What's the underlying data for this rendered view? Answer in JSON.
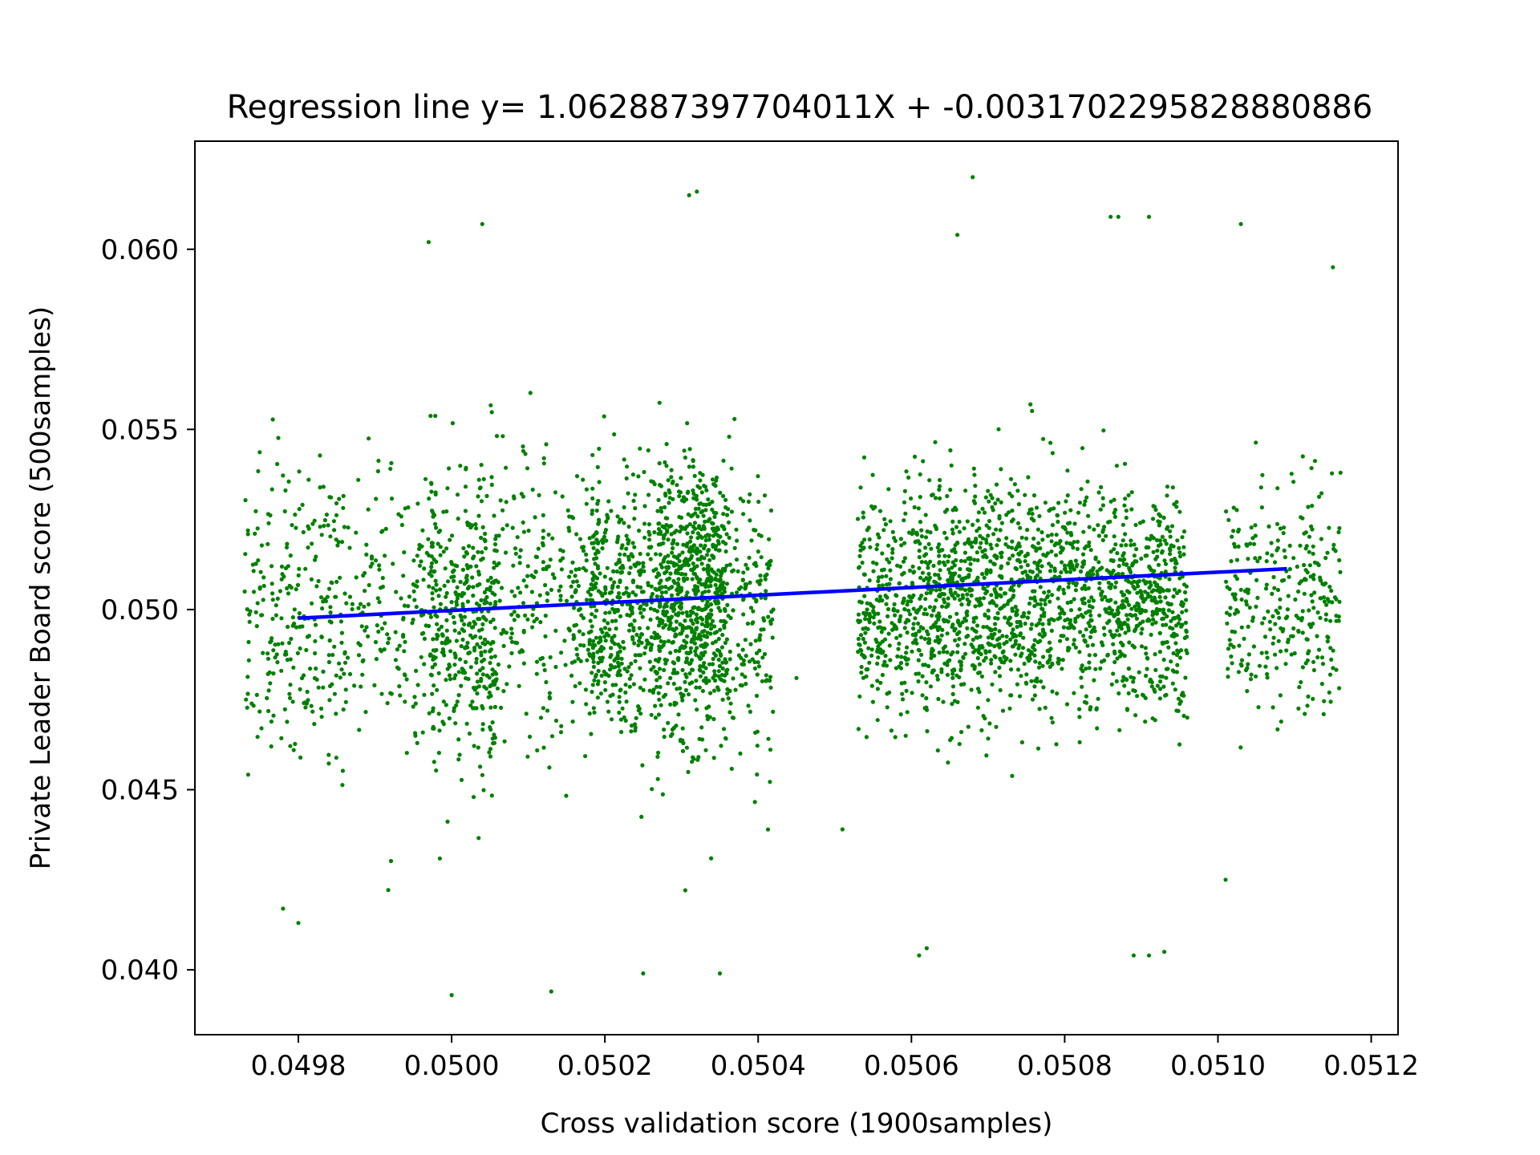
{
  "chart_data": {
    "type": "scatter",
    "title": "Regression line y= 1.062887397704011X + -0.0031702295828880886",
    "xlabel": "Cross validation score (1900samples)",
    "ylabel": "Private Leader Board score (500samples)",
    "xlim": [
      0.049665,
      0.051235
    ],
    "ylim": [
      0.0382,
      0.063
    ],
    "x_ticks": [
      {
        "value": 0.0498,
        "label": "0.0498"
      },
      {
        "value": 0.05,
        "label": "0.0500"
      },
      {
        "value": 0.0502,
        "label": "0.0502"
      },
      {
        "value": 0.0504,
        "label": "0.0504"
      },
      {
        "value": 0.0506,
        "label": "0.0506"
      },
      {
        "value": 0.0508,
        "label": "0.0508"
      },
      {
        "value": 0.051,
        "label": "0.0510"
      },
      {
        "value": 0.0512,
        "label": "0.0512"
      }
    ],
    "y_ticks": [
      {
        "value": 0.04,
        "label": "0.040"
      },
      {
        "value": 0.045,
        "label": "0.045"
      },
      {
        "value": 0.05,
        "label": "0.050"
      },
      {
        "value": 0.055,
        "label": "0.055"
      },
      {
        "value": 0.06,
        "label": "0.060"
      }
    ],
    "grid": false,
    "legend": "none",
    "point_color": "#008000",
    "line_color": "#0000ff",
    "regression": {
      "slope": 1.062887397704011,
      "intercept": -0.0031702295828880886,
      "x_range": [
        0.0498,
        0.05109
      ]
    },
    "clusters": [
      {
        "x_range": [
          0.04973,
          0.04985
        ],
        "y_center": 0.0498,
        "y_spread": 0.0042,
        "count": 220
      },
      {
        "x_range": [
          0.04984,
          0.04998
        ],
        "y_center": 0.0498,
        "y_spread": 0.0038,
        "count": 220
      },
      {
        "x_range": [
          0.04997,
          0.05006
        ],
        "y_center": 0.0498,
        "y_spread": 0.004,
        "count": 380
      },
      {
        "x_range": [
          0.05005,
          0.05019
        ],
        "y_center": 0.0502,
        "y_spread": 0.0037,
        "count": 280
      },
      {
        "x_range": [
          0.05018,
          0.05027
        ],
        "y_center": 0.0501,
        "y_spread": 0.0036,
        "count": 420
      },
      {
        "x_range": [
          0.05027,
          0.05036
        ],
        "y_center": 0.0502,
        "y_spread": 0.0039,
        "count": 760
      },
      {
        "x_range": [
          0.05036,
          0.05042
        ],
        "y_center": 0.0499,
        "y_spread": 0.0037,
        "count": 160
      },
      {
        "x_range": [
          0.05053,
          0.0506
        ],
        "y_center": 0.05,
        "y_spread": 0.0032,
        "count": 260
      },
      {
        "x_range": [
          0.0506,
          0.0507
        ],
        "y_center": 0.0503,
        "y_spread": 0.0033,
        "count": 480
      },
      {
        "x_range": [
          0.0507,
          0.05082
        ],
        "y_center": 0.0503,
        "y_spread": 0.0032,
        "count": 520
      },
      {
        "x_range": [
          0.05082,
          0.05096
        ],
        "y_center": 0.0502,
        "y_spread": 0.003,
        "count": 600
      },
      {
        "x_range": [
          0.05101,
          0.05116
        ],
        "y_center": 0.0503,
        "y_spread": 0.0035,
        "count": 300
      }
    ],
    "outliers": [
      [
        0.04973,
        0.0505
      ],
      [
        0.04978,
        0.0417
      ],
      [
        0.0498,
        0.0413
      ],
      [
        0.04997,
        0.0602
      ],
      [
        0.05,
        0.0393
      ],
      [
        0.05004,
        0.0607
      ],
      [
        0.05013,
        0.0394
      ],
      [
        0.05031,
        0.0615
      ],
      [
        0.05032,
        0.0616
      ],
      [
        0.05025,
        0.0399
      ],
      [
        0.05035,
        0.0399
      ],
      [
        0.05045,
        0.0481
      ],
      [
        0.05051,
        0.0439
      ],
      [
        0.05061,
        0.0404
      ],
      [
        0.05062,
        0.0406
      ],
      [
        0.05068,
        0.062
      ],
      [
        0.05066,
        0.0604
      ],
      [
        0.05086,
        0.0609
      ],
      [
        0.05087,
        0.0609
      ],
      [
        0.05091,
        0.0609
      ],
      [
        0.05089,
        0.0404
      ],
      [
        0.05091,
        0.0404
      ],
      [
        0.05093,
        0.0405
      ],
      [
        0.05096,
        0.047
      ],
      [
        0.05103,
        0.0607
      ],
      [
        0.05101,
        0.0425
      ],
      [
        0.05115,
        0.0595
      ],
      [
        0.05116,
        0.0538
      ]
    ]
  }
}
